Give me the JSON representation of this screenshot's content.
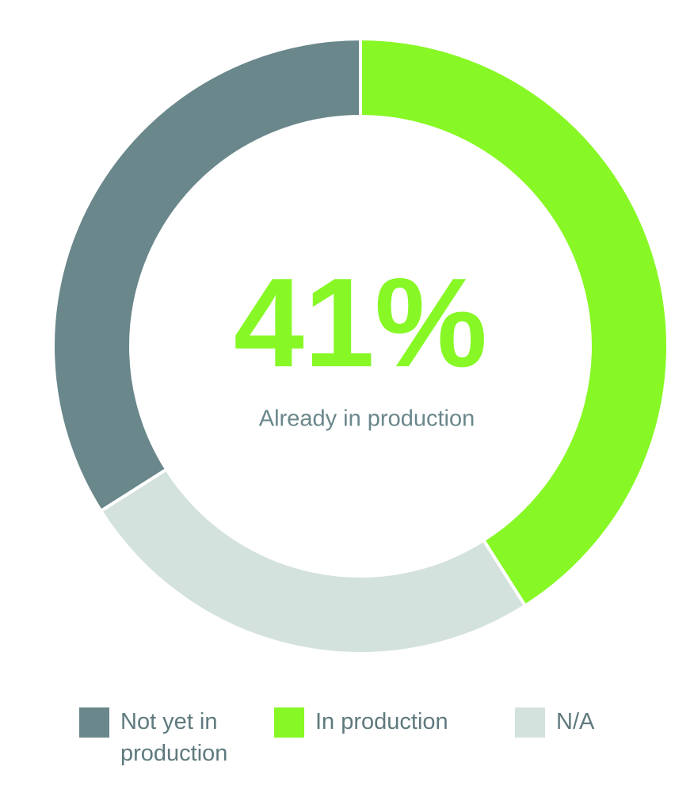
{
  "chart_data": {
    "type": "donut",
    "categories": [
      "Not yet in production",
      "In production",
      "N/A"
    ],
    "values": [
      34,
      41,
      25
    ],
    "value_labels": [
      null,
      "41%",
      null
    ],
    "colors": [
      "#6a878b",
      "#87f825",
      "#d4e2dd"
    ],
    "center_text": "Already in production",
    "legend": "bottom"
  }
}
